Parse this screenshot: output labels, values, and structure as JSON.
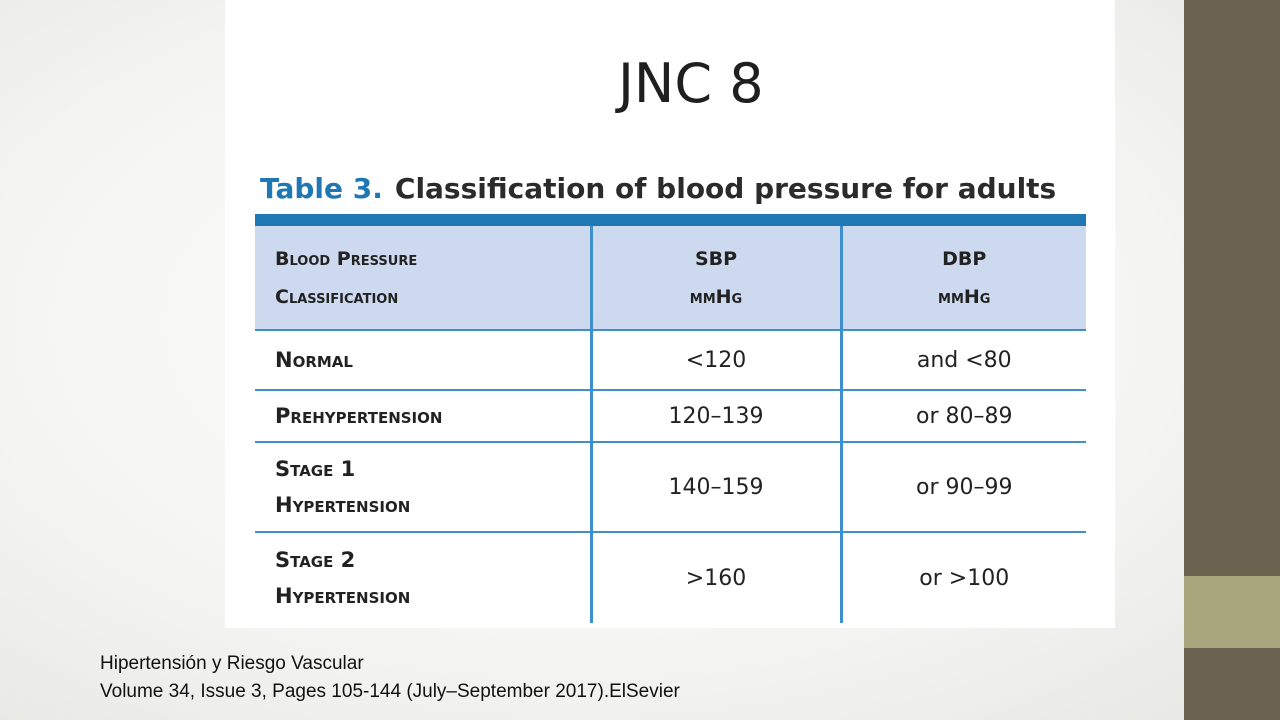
{
  "slide": {
    "title": "JNC 8"
  },
  "table": {
    "number": "Table 3.",
    "caption": "Classification of blood pressure for adults",
    "headers": {
      "classification_line1": "Blood Pressure",
      "classification_line2": "Classification",
      "sbp_line1": "SBP",
      "sbp_line2": "mmHg",
      "dbp_line1": "DBP",
      "dbp_line2": "mmHg"
    },
    "rows": [
      {
        "class_line1": "Normal",
        "class_line2": "",
        "sbp": "<120",
        "dbp": "and <80"
      },
      {
        "class_line1": "Prehypertension",
        "class_line2": "",
        "sbp": "120–139",
        "dbp": "or 80–89"
      },
      {
        "class_line1": "Stage 1",
        "class_line2": "Hypertension",
        "sbp": "140–159",
        "dbp": "or 90–99"
      },
      {
        "class_line1": "Stage 2",
        "class_line2": "Hypertension",
        "sbp": ">160",
        "dbp": "or >100"
      }
    ],
    "colors": {
      "accent_blue": "#1f77b4",
      "rule_blue": "#3d8fce",
      "header_fill": "#cdd9ee"
    }
  },
  "citation": {
    "line1": "Hipertensión y Riesgo Vascular",
    "line2": "Volume 34, Issue 3, Pages 105-144 (July–September 2017).ElSevier"
  },
  "theme": {
    "sidebar_dark": "#6b6350",
    "sidebar_light": "#a8a67c"
  }
}
